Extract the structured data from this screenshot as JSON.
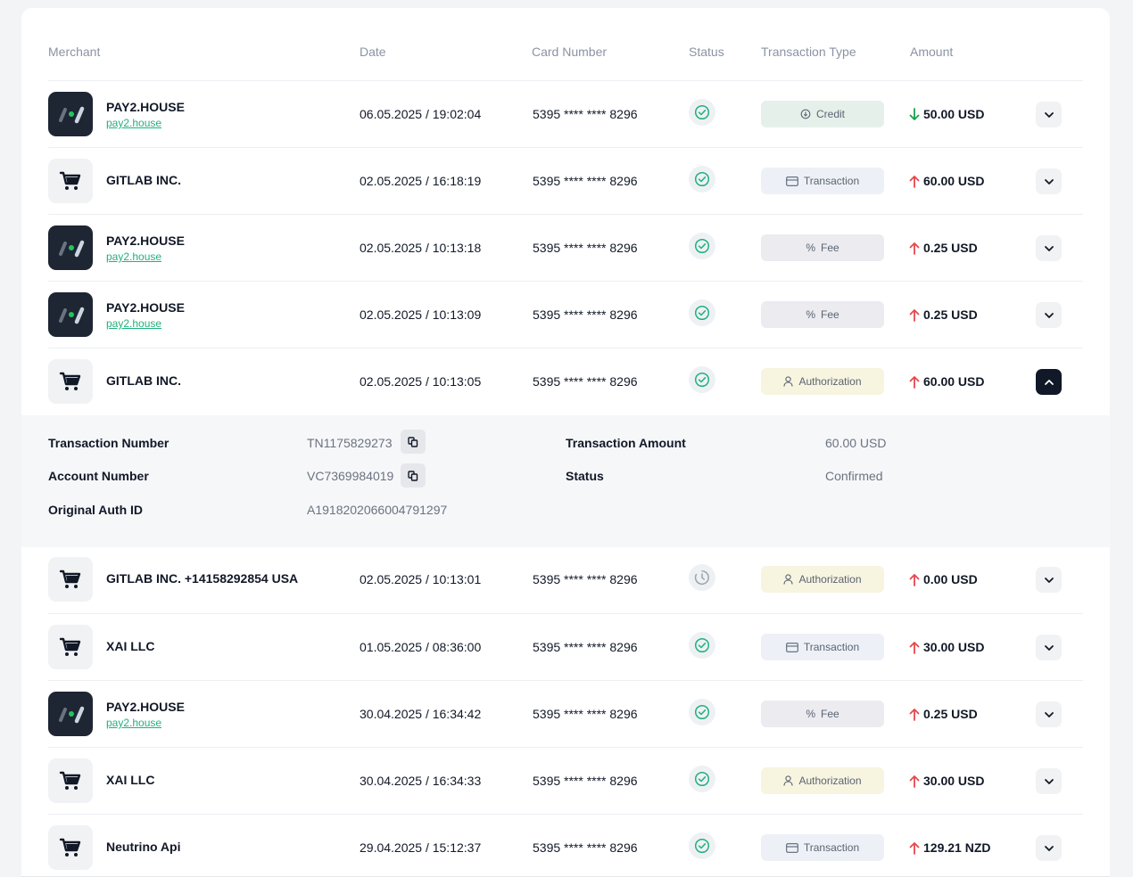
{
  "headers": {
    "merchant": "Merchant",
    "date": "Date",
    "card_number": "Card Number",
    "status": "Status",
    "transaction_type": "Transaction Type",
    "amount": "Amount"
  },
  "rows": [
    {
      "merchant": "PAY2.HOUSE",
      "link": "pay2.house",
      "logo": "pay2-logo",
      "date": "06.05.2025 / 19:02:04",
      "card": "5395 **** **** 8296",
      "status": "confirmed",
      "type": "Credit",
      "type_style": "credit",
      "direction": "down",
      "amount": "50.00 USD",
      "expanded": false
    },
    {
      "merchant": "GITLAB INC.",
      "link": "",
      "logo": "cart-icon",
      "date": "02.05.2025 / 16:18:19",
      "card": "5395 **** **** 8296",
      "status": "confirmed",
      "type": "Transaction",
      "type_style": "transaction",
      "direction": "up",
      "amount": "60.00 USD",
      "expanded": false
    },
    {
      "merchant": "PAY2.HOUSE",
      "link": "pay2.house",
      "logo": "pay2-logo",
      "date": "02.05.2025 / 10:13:18",
      "card": "5395 **** **** 8296",
      "status": "confirmed",
      "type": "Fee",
      "type_style": "fee",
      "direction": "up",
      "amount": "0.25 USD",
      "expanded": false
    },
    {
      "merchant": "PAY2.HOUSE",
      "link": "pay2.house",
      "logo": "pay2-logo",
      "date": "02.05.2025 / 10:13:09",
      "card": "5395 **** **** 8296",
      "status": "confirmed",
      "type": "Fee",
      "type_style": "fee",
      "direction": "up",
      "amount": "0.25 USD",
      "expanded": false
    },
    {
      "merchant": "GITLAB INC.",
      "link": "",
      "logo": "cart-icon",
      "date": "02.05.2025 / 10:13:05",
      "card": "5395 **** **** 8296",
      "status": "confirmed",
      "type": "Authorization",
      "type_style": "authorization",
      "direction": "up",
      "amount": "60.00 USD",
      "expanded": true
    },
    {
      "merchant": "GITLAB INC. +14158292854 USA",
      "link": "",
      "logo": "cart-icon",
      "date": "02.05.2025 / 10:13:01",
      "card": "5395 **** **** 8296",
      "status": "pending",
      "type": "Authorization",
      "type_style": "authorization",
      "direction": "up",
      "amount": "0.00 USD",
      "expanded": false
    },
    {
      "merchant": "XAI LLC",
      "link": "",
      "logo": "cart-icon",
      "date": "01.05.2025 / 08:36:00",
      "card": "5395 **** **** 8296",
      "status": "confirmed",
      "type": "Transaction",
      "type_style": "transaction",
      "direction": "up",
      "amount": "30.00 USD",
      "expanded": false
    },
    {
      "merchant": "PAY2.HOUSE",
      "link": "pay2.house",
      "logo": "pay2-logo",
      "date": "30.04.2025 / 16:34:42",
      "card": "5395 **** **** 8296",
      "status": "confirmed",
      "type": "Fee",
      "type_style": "fee",
      "direction": "up",
      "amount": "0.25 USD",
      "expanded": false
    },
    {
      "merchant": "XAI LLC",
      "link": "",
      "logo": "cart-icon",
      "date": "30.04.2025 / 16:34:33",
      "card": "5395 **** **** 8296",
      "status": "confirmed",
      "type": "Authorization",
      "type_style": "authorization",
      "direction": "up",
      "amount": "30.00 USD",
      "expanded": false
    },
    {
      "merchant": "Neutrino Api",
      "link": "",
      "logo": "cart-icon",
      "date": "29.04.2025 / 15:12:37",
      "card": "5395 **** **** 8296",
      "status": "confirmed",
      "type": "Transaction",
      "type_style": "transaction",
      "direction": "up",
      "amount": "129.21 NZD",
      "expanded": false
    }
  ],
  "details": {
    "transaction_number_label": "Transaction Number",
    "transaction_number": "TN1175829273",
    "account_number_label": "Account Number",
    "account_number": "VC7369984019",
    "original_auth_id_label": "Original Auth ID",
    "original_auth_id": "A1918202066004791297",
    "transaction_amount_label": "Transaction Amount",
    "transaction_amount": "60.00 USD",
    "status_label": "Status",
    "status": "Confirmed"
  },
  "colors": {
    "accent_green": "#22b07d",
    "arrow_down": "#16a34a",
    "arrow_up": "#e5484d"
  }
}
